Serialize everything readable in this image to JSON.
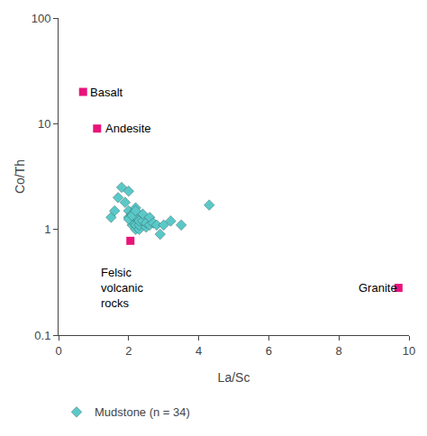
{
  "chart_data": {
    "type": "scatter",
    "xlabel": "La/Sc",
    "ylabel": "Co/Th",
    "series": [
      {
        "name": "Mudstone (n = 34)",
        "color": "#5BC8C8",
        "marker": "diamond",
        "x": [
          1.8,
          1.9,
          2.0,
          2.0,
          2.1,
          2.1,
          2.1,
          2.2,
          2.2,
          2.2,
          2.2,
          2.3,
          2.3,
          2.3,
          2.4,
          2.4,
          2.5,
          2.5,
          2.6,
          2.6,
          2.7,
          2.8,
          2.9,
          3.0,
          3.2,
          3.5,
          4.3,
          1.5,
          1.6,
          1.7,
          2.0,
          2.0,
          2.1,
          2.2
        ],
        "values": [
          2.5,
          1.8,
          1.3,
          1.5,
          1.1,
          1.2,
          1.4,
          1.0,
          1.1,
          1.3,
          1.6,
          1.0,
          1.1,
          1.2,
          1.2,
          1.4,
          1.05,
          1.15,
          1.1,
          1.3,
          1.15,
          1.1,
          0.9,
          1.1,
          1.2,
          1.1,
          1.7,
          1.3,
          1.5,
          2.0,
          2.3,
          1.25,
          1.35,
          1.5
        ]
      },
      {
        "color": "#E8147A",
        "marker": "square",
        "x": [
          0.7,
          1.1,
          2.05,
          9.7
        ],
        "values": [
          20.0,
          9.0,
          0.78,
          0.28
        ]
      }
    ],
    "annotations": [
      {
        "text": "Basalt",
        "x": 0.85,
        "y": 20.0
      },
      {
        "text": "Andesite",
        "x": 1.28,
        "y": 9.0
      },
      {
        "text": "Felsic\nvolcanic\nrocks",
        "x": 1.15,
        "y": 0.47
      },
      {
        "text": "Granite",
        "x": 8.5,
        "y": 0.28
      }
    ],
    "xlim": [
      0,
      10
    ],
    "ylim": [
      0.1,
      100
    ],
    "xticks": [
      0,
      2,
      4,
      6,
      8,
      10
    ],
    "yticks": [
      0.1,
      1,
      10,
      100
    ],
    "log": "y",
    "grid": false,
    "legend": "below"
  }
}
